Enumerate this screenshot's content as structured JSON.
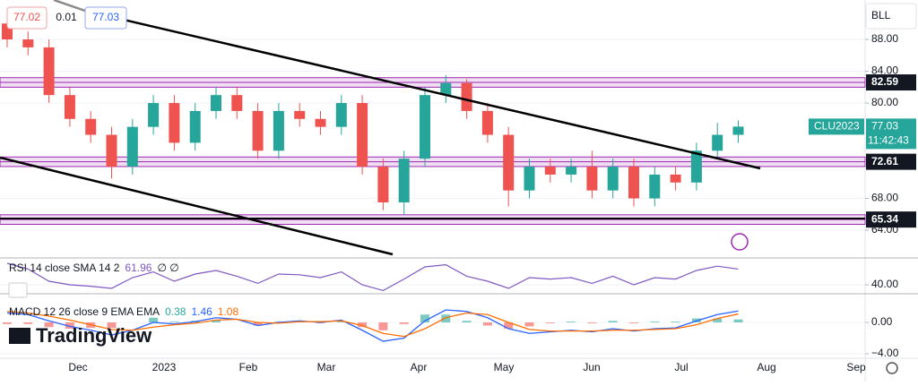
{
  "header": {
    "bid": "77.02",
    "spread": "0.01",
    "ask": "77.03",
    "scale_label": "BLL",
    "logo": "TradingView"
  },
  "chart_data": [
    {
      "type": "candlestick",
      "symbol": "CLU2023",
      "time_label": "11:42:43",
      "open": [
        90,
        88,
        87,
        81,
        78,
        76,
        72,
        77,
        80,
        75,
        79,
        81,
        79,
        74,
        79,
        78,
        77,
        80,
        72,
        67.5,
        73,
        81,
        82.5,
        79,
        76,
        69,
        72,
        71,
        72,
        69,
        72,
        68,
        71,
        70,
        74,
        76
      ],
      "high": [
        91,
        89,
        88,
        82,
        79,
        77,
        78,
        81,
        81,
        80,
        82,
        82,
        80,
        80,
        80,
        79,
        81,
        81,
        73,
        74,
        82,
        83.5,
        83,
        80,
        77,
        73,
        73,
        73,
        74,
        73,
        73,
        72,
        72,
        75,
        77.5,
        77.8
      ],
      "low": [
        87,
        86,
        80,
        77,
        75,
        70.5,
        71,
        76,
        74,
        74,
        78,
        78,
        73,
        73,
        77,
        76,
        76,
        71,
        66.5,
        66,
        72,
        80,
        78,
        75,
        67,
        68,
        70,
        70,
        68,
        68,
        67,
        67,
        69,
        69,
        73,
        75
      ],
      "close": [
        88,
        87,
        81,
        78,
        76,
        72,
        77,
        80,
        75,
        79,
        81,
        79,
        74,
        79,
        78,
        77,
        80,
        72,
        67.5,
        73,
        81,
        82.5,
        79,
        76,
        69,
        72,
        71,
        72,
        69,
        72,
        68,
        71,
        70,
        74,
        76,
        77.03
      ],
      "up_color": "#26a69a",
      "down_color": "#ef5350",
      "hlines": [
        82.59,
        72.61,
        65.34
      ],
      "hline_color": "#9c27b0",
      "ylim": [
        60.85,
        92.96
      ],
      "yticks": [
        {
          "value": 64,
          "label": "64.00"
        },
        {
          "value": 68,
          "label": "68.00"
        },
        {
          "value": 80,
          "label": "80.00"
        },
        {
          "value": 84,
          "label": "84.00"
        },
        {
          "value": 88,
          "label": "88.00"
        }
      ],
      "xtick_labels": [
        "Dec",
        "2023",
        "Feb",
        "Mar",
        "Apr",
        "May",
        "Jun",
        "Jul",
        "Aug",
        "Sep"
      ]
    },
    {
      "type": "line",
      "label": "RSI 14 close SMA 14 2",
      "label_suffix": "∅ ∅",
      "color": "#7e57c2",
      "values": [
        70,
        62,
        45,
        40,
        38,
        35,
        50,
        58,
        45,
        55,
        60,
        52,
        42,
        55,
        54,
        50,
        58,
        40,
        32,
        48,
        65,
        68,
        52,
        45,
        35,
        50,
        48,
        50,
        42,
        52,
        40,
        50,
        48,
        60,
        66,
        61.96
      ],
      "ylim": [
        30,
        75
      ],
      "yticks": [
        {
          "value": 40,
          "label": "40.00"
        }
      ]
    },
    {
      "type": "macd",
      "label": "MACD 12 26 close 9 EMA EMA",
      "histogram": [
        -0.2,
        -0.2,
        -0.6,
        -0.8,
        -0.7,
        -0.7,
        0,
        0.6,
        0.1,
        0.2,
        0.3,
        0,
        -0.4,
        0.1,
        0.1,
        -0.1,
        0.1,
        -0.6,
        -1.0,
        -0.2,
        1.0,
        1.0,
        0.2,
        -0.4,
        -0.8,
        -0.5,
        -0.1,
        0.1,
        -0.1,
        0.2,
        -0.1,
        0.1,
        0.1,
        0.5,
        0.5,
        0.38
      ],
      "series": [
        {
          "name": "MACD",
          "color": "#2962ff",
          "values": [
            1.2,
            1.0,
            0.2,
            -0.5,
            -1.0,
            -1.6,
            -1.0,
            0.0,
            -0.2,
            0.1,
            0.6,
            0.4,
            -0.4,
            0.0,
            0.2,
            0.0,
            0.3,
            -1.0,
            -2.4,
            -2.0,
            0.2,
            1.6,
            1.4,
            0.6,
            -0.8,
            -1.4,
            -1.2,
            -1.0,
            -1.2,
            -0.8,
            -1.1,
            -0.8,
            -0.7,
            0.2,
            1.0,
            1.46
          ]
        },
        {
          "name": "Signal",
          "color": "#ff6d00",
          "values": [
            1.4,
            1.2,
            0.8,
            0.3,
            -0.3,
            -0.9,
            -1.0,
            -0.6,
            -0.3,
            -0.1,
            0.3,
            0.4,
            0.0,
            -0.1,
            0.1,
            0.1,
            0.2,
            -0.4,
            -1.4,
            -1.8,
            -0.8,
            0.6,
            1.2,
            1.0,
            0.0,
            -0.9,
            -1.1,
            -1.1,
            -1.1,
            -1.0,
            -1.0,
            -0.9,
            -0.8,
            -0.3,
            0.5,
            1.08
          ]
        }
      ],
      "ylim": [
        -4.34,
        3.2
      ],
      "yticks": [
        {
          "value": 0,
          "label": "0.00"
        },
        {
          "value": -4,
          "label": "−4.00"
        }
      ]
    }
  ]
}
